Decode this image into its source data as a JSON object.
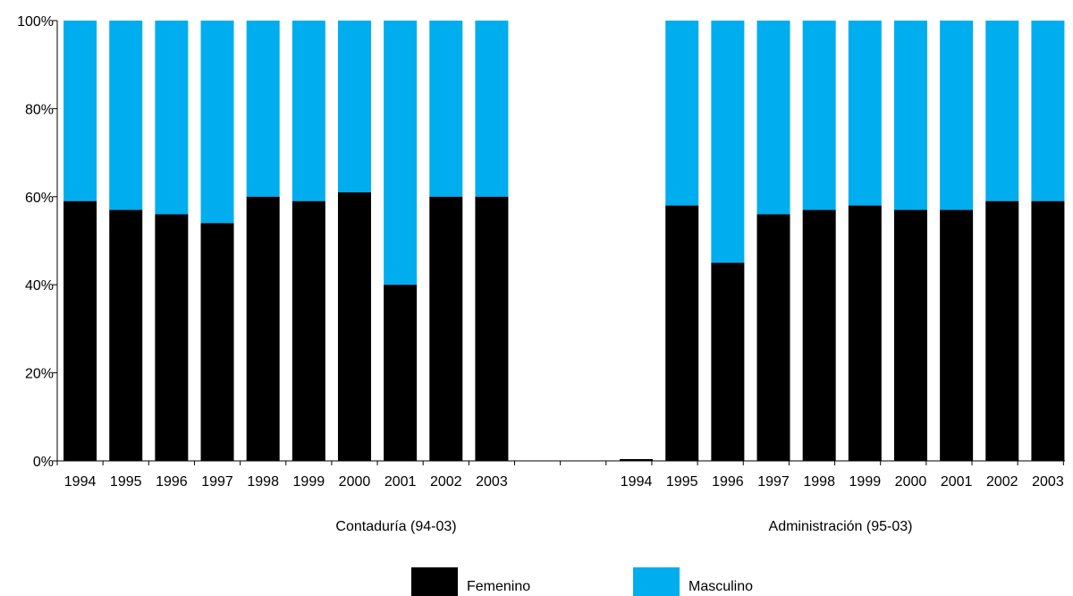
{
  "chart_data": {
    "type": "bar",
    "stacked": true,
    "y_ticks": [
      "0%",
      "20%",
      "40%",
      "60%",
      "80%",
      "100%"
    ],
    "ylim": [
      0,
      100
    ],
    "legend_position": "bottom",
    "colors": {
      "Femenino": "#000000",
      "Masculino": "#00AEEF"
    },
    "series_names": [
      "Femenino",
      "Masculino"
    ],
    "groups": [
      {
        "label": "Contaduría (94-03)",
        "categories": [
          "1994",
          "1995",
          "1996",
          "1997",
          "1998",
          "1999",
          "2000",
          "2001",
          "2002",
          "2003"
        ],
        "series": [
          {
            "name": "Femenino",
            "values": [
              59,
              57,
              56,
              54,
              60,
              59,
              61,
              40,
              60,
              60
            ]
          },
          {
            "name": "Masculino",
            "values": [
              41,
              43,
              44,
              46,
              40,
              41,
              39,
              60,
              40,
              40
            ]
          }
        ]
      },
      {
        "label": "Administración (95-03)",
        "categories": [
          "1994",
          "1995",
          "1996",
          "1997",
          "1998",
          "1999",
          "2000",
          "2001",
          "2002",
          "2003"
        ],
        "series": [
          {
            "name": "Femenino",
            "values": [
              0,
              58,
              45,
              56,
              57,
              58,
              57,
              57,
              59,
              59
            ]
          },
          {
            "name": "Masculino",
            "values": [
              0,
              42,
              55,
              44,
              43,
              42,
              43,
              43,
              41,
              41
            ]
          }
        ]
      }
    ]
  }
}
